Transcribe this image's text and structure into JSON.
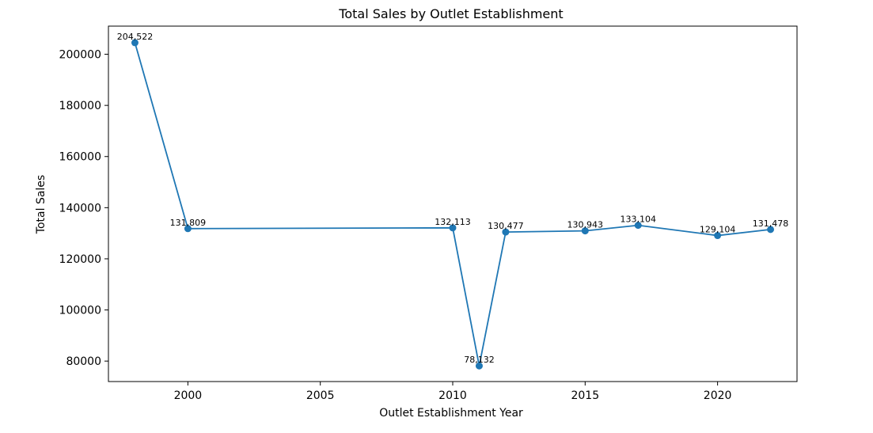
{
  "chart_data": {
    "type": "line",
    "title": "Total Sales by Outlet Establishment",
    "xlabel": "Outlet Establishment Year",
    "ylabel": "Total Sales",
    "xlim": [
      1997.0,
      2023.0
    ],
    "ylim": [
      72000,
      211000
    ],
    "xticks": [
      2000,
      2005,
      2010,
      2015,
      2020
    ],
    "yticks": [
      80000,
      100000,
      120000,
      140000,
      160000,
      180000,
      200000
    ],
    "grid": false,
    "color": "#1f77b4",
    "series": [
      {
        "x": [
          1998,
          2000,
          2010,
          2011,
          2012,
          2015,
          2017,
          2020,
          2022
        ],
        "y": [
          204522,
          131809,
          132113,
          78132,
          130477,
          130943,
          133104,
          129104,
          131478
        ],
        "labels": [
          "204,522",
          "131,809",
          "132,113",
          "78,132",
          "130,477",
          "130,943",
          "133,104",
          "129,104",
          "131,478"
        ]
      }
    ]
  }
}
